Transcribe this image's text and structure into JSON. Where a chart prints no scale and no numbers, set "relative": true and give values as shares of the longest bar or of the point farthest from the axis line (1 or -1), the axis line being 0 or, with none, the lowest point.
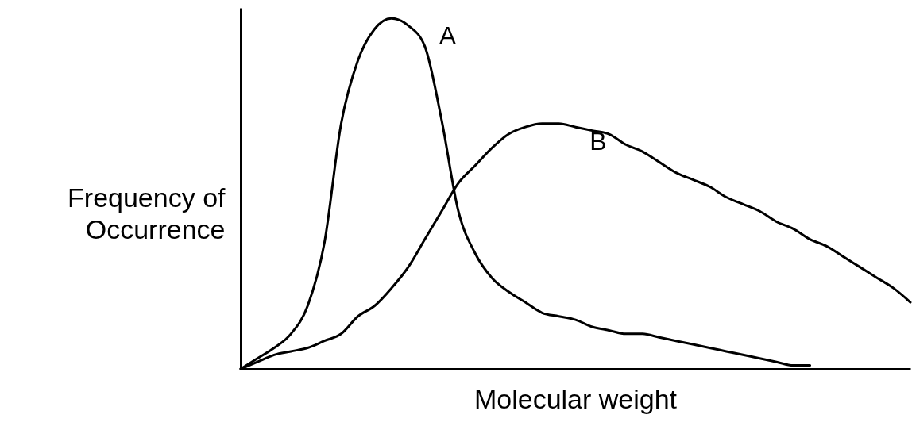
{
  "chart_data": {
    "type": "line",
    "relative": true,
    "xlabel": "Molecular weight",
    "ylabel": "Frequency of Occurrence",
    "categories": [
      null,
      null,
      null,
      null,
      null,
      null,
      null,
      null,
      null,
      null,
      null,
      null,
      null,
      null,
      null,
      null,
      null,
      null,
      null,
      null,
      null,
      null,
      null,
      null,
      null,
      null,
      null,
      null,
      null,
      null,
      null,
      null,
      null,
      null,
      null,
      null,
      null,
      null,
      null,
      null,
      null
    ],
    "series": [
      {
        "name": "A",
        "color": "#000000",
        "values": [
          0,
          0.03,
          0.06,
          0.1,
          0.18,
          0.36,
          0.7,
          0.88,
          0.97,
          1.0,
          0.98,
          0.92,
          0.71,
          0.45,
          0.33,
          0.26,
          0.22,
          0.19,
          0.16,
          0.15,
          0.14,
          0.12,
          0.11,
          0.1,
          0.1,
          0.09,
          0.08,
          0.07,
          0.06,
          0.05,
          0.04,
          0.03,
          0.02,
          0.01,
          0.01,
          null,
          null,
          null,
          null,
          null,
          null
        ]
      },
      {
        "name": "B",
        "color": "#000000",
        "values": [
          0,
          0.02,
          0.04,
          0.05,
          0.06,
          0.08,
          0.1,
          0.15,
          0.18,
          0.23,
          0.29,
          0.37,
          0.45,
          0.53,
          0.58,
          0.63,
          0.67,
          0.69,
          0.7,
          0.7,
          0.69,
          0.68,
          0.67,
          0.64,
          0.62,
          0.59,
          0.56,
          0.54,
          0.52,
          0.49,
          0.47,
          0.45,
          0.42,
          0.4,
          0.37,
          0.35,
          0.32,
          0.29,
          0.26,
          0.23,
          0.19
        ]
      }
    ],
    "grid": false,
    "marker": "none",
    "line_style": "solid"
  }
}
